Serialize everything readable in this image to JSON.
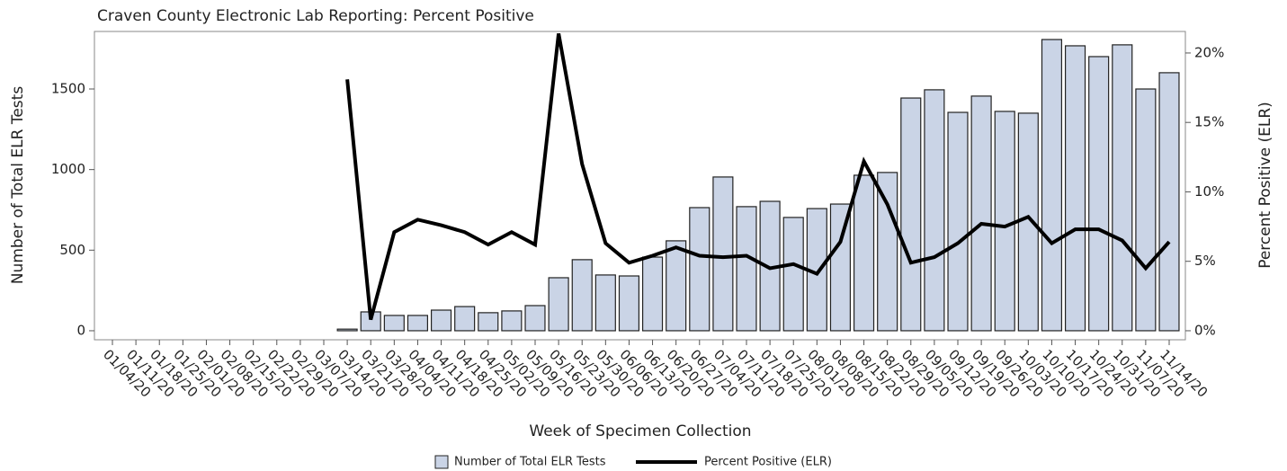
{
  "chart_data": {
    "type": "bar-line",
    "title": "Craven County Electronic Lab Reporting: Percent Positive",
    "x_label": "Week of Specimen Collection",
    "y_label": "Number of Total ELR Tests",
    "y2_label": "Percent Positive (ELR)",
    "categories": [
      "01/04/20",
      "01/11/20",
      "01/18/20",
      "01/25/20",
      "02/01/20",
      "02/08/20",
      "02/15/20",
      "02/22/20",
      "02/29/20",
      "03/07/20",
      "03/14/20",
      "03/21/20",
      "03/28/20",
      "04/04/20",
      "04/11/20",
      "04/18/20",
      "04/25/20",
      "05/02/20",
      "05/09/20",
      "05/16/20",
      "05/23/20",
      "05/30/20",
      "06/06/20",
      "06/13/20",
      "06/20/20",
      "06/27/20",
      "07/04/20",
      "07/11/20",
      "07/18/20",
      "07/25/20",
      "08/01/20",
      "08/08/20",
      "08/15/20",
      "08/22/20",
      "08/29/20",
      "09/05/20",
      "09/12/20",
      "09/19/20",
      "09/26/20",
      "10/03/20",
      "10/10/20",
      "10/17/20",
      "10/24/20",
      "10/31/20",
      "11/07/20",
      "11/14/20"
    ],
    "series": [
      {
        "name": "Number of Total ELR Tests",
        "type": "bar",
        "color": "#cad4e6",
        "values": [
          null,
          null,
          null,
          null,
          null,
          null,
          null,
          null,
          null,
          null,
          10,
          117,
          95,
          95,
          128,
          150,
          112,
          123,
          156,
          329,
          441,
          346,
          340,
          457,
          558,
          764,
          954,
          770,
          803,
          703,
          758,
          786,
          965,
          982,
          1444,
          1495,
          1355,
          1456,
          1361,
          1350,
          1807,
          1768,
          1701,
          1774,
          1500,
          1601
        ]
      },
      {
        "name": "Percent Positive (ELR)",
        "type": "line",
        "axis": "y2",
        "color": "#000000",
        "values": [
          null,
          null,
          null,
          null,
          null,
          null,
          null,
          null,
          null,
          null,
          18.1,
          0.8,
          7.1,
          8.0,
          7.6,
          7.1,
          6.2,
          7.1,
          6.2,
          21.4,
          12.0,
          6.3,
          4.9,
          5.4,
          6.0,
          5.4,
          5.3,
          5.4,
          4.5,
          4.8,
          4.1,
          6.4,
          12.2,
          9.1,
          4.9,
          5.3,
          6.3,
          7.7,
          7.5,
          8.2,
          6.3,
          7.3,
          7.3,
          6.5,
          4.5,
          6.4
        ]
      }
    ],
    "ylim": [
      -56,
      1857
    ],
    "yticks": [
      0,
      500,
      1000,
      1500
    ],
    "y2lim": [
      -0.65,
      21.55
    ],
    "y2ticks": [
      {
        "value": 0,
        "label": "0%"
      },
      {
        "value": 5,
        "label": "5%"
      },
      {
        "value": 10,
        "label": "10%"
      },
      {
        "value": 15,
        "label": "15%"
      },
      {
        "value": 20,
        "label": "20%"
      }
    ],
    "legend": "bottom",
    "grid": false
  }
}
